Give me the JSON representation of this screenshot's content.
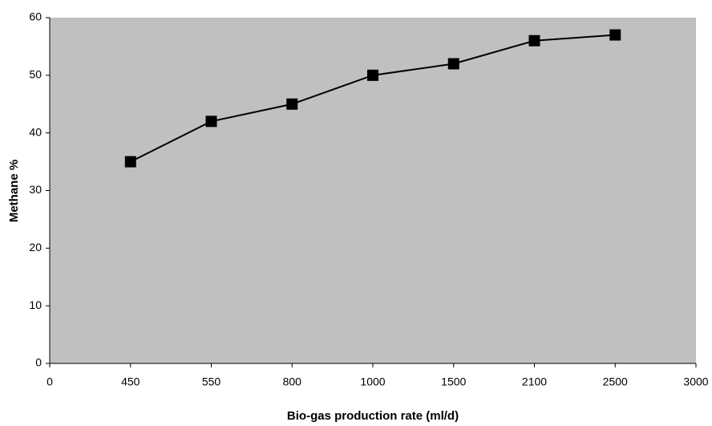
{
  "chart_data": {
    "type": "line",
    "x_label": "Bio-gas production rate (ml/d)",
    "y_label": "Methane %",
    "categories": [
      "0",
      "450",
      "550",
      "800",
      "1000",
      "1500",
      "2100",
      "2500",
      "3000"
    ],
    "values": [
      null,
      35,
      42,
      45,
      50,
      52,
      56,
      57,
      null
    ],
    "color": "#000000",
    "plot_background": "#c0c0c0",
    "ylim": [
      0,
      60
    ],
    "yticks": [
      0,
      10,
      20,
      30,
      40,
      50,
      60
    ]
  }
}
